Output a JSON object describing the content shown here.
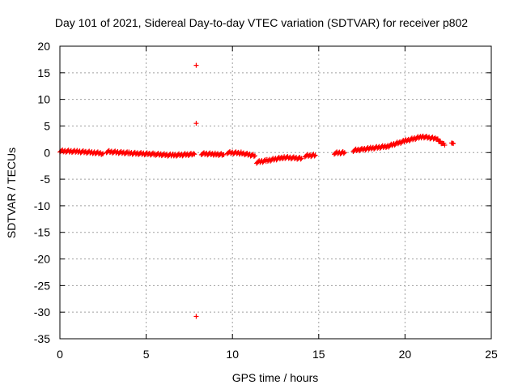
{
  "chart_data": {
    "type": "scatter",
    "title": "Day 101 of 2021, Sidereal Day-to-day VTEC variation (SDTVAR) for receiver p802",
    "xlabel": "GPS time / hours",
    "ylabel": "SDTVAR / TECUs",
    "xlim": [
      0,
      25
    ],
    "ylim": [
      -35,
      20
    ],
    "xticks": [
      0,
      5,
      10,
      15,
      20,
      25
    ],
    "yticks": [
      20,
      15,
      10,
      5,
      0,
      -5,
      -10,
      -15,
      -20,
      -25,
      -30,
      -35
    ],
    "grid": true,
    "legend": "none",
    "marker": "+",
    "color": "#ff0000",
    "series": [
      {
        "name": "SDTVAR",
        "segments": [
          {
            "x": [
              0.0,
              1.0,
              2.0,
              2.5
            ],
            "y": [
              0.3,
              0.2,
              0.0,
              -0.2
            ]
          },
          {
            "x": [
              2.7,
              4.0,
              5.5,
              6.5,
              7.8
            ],
            "y": [
              0.2,
              -0.1,
              -0.3,
              -0.5,
              -0.3
            ]
          },
          {
            "x": [
              8.2,
              9.0,
              9.5
            ],
            "y": [
              -0.2,
              -0.3,
              -0.4
            ]
          },
          {
            "x": [
              9.7,
              10.5,
              11.3
            ],
            "y": [
              0.0,
              -0.1,
              -0.6
            ]
          },
          {
            "x": [
              11.4,
              12.0,
              13.0,
              14.0
            ],
            "y": [
              -1.8,
              -1.5,
              -0.9,
              -1.1
            ]
          },
          {
            "x": [
              14.2,
              14.8
            ],
            "y": [
              -0.6,
              -0.5
            ]
          },
          {
            "x": [
              15.9,
              16.5
            ],
            "y": [
              -0.1,
              0.0
            ]
          },
          {
            "x": [
              17.0,
              18.0,
              19.0,
              20.0,
              21.0,
              21.8,
              22.3
            ],
            "y": [
              0.4,
              0.8,
              1.2,
              2.2,
              3.0,
              2.6,
              1.4
            ]
          },
          {
            "x": [
              22.7,
              22.8
            ],
            "y": [
              2.0,
              1.7
            ]
          }
        ],
        "outliers": [
          {
            "x": 7.9,
            "y": 16.4
          },
          {
            "x": 7.9,
            "y": 5.5
          },
          {
            "x": 7.9,
            "y": -30.8
          }
        ]
      }
    ]
  }
}
